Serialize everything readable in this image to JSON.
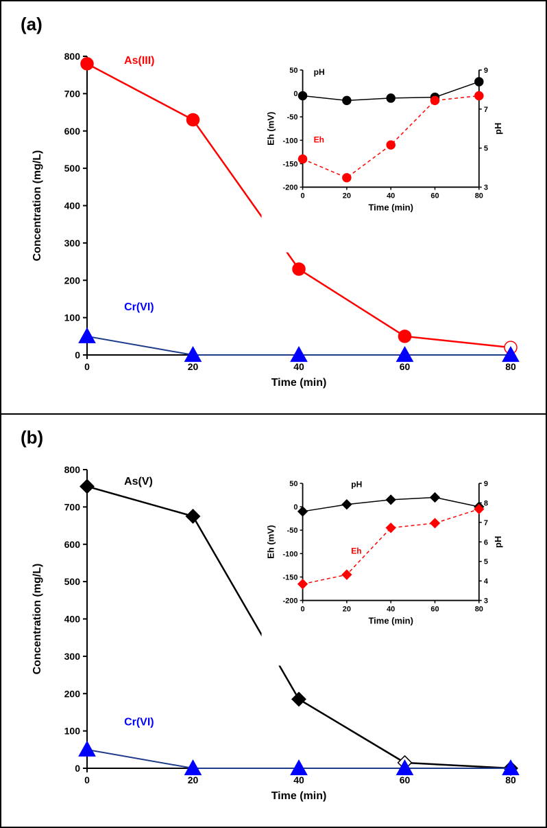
{
  "panels": [
    {
      "label": "(a)",
      "main_chart": {
        "type": "line",
        "xlabel": "Time (min)",
        "ylabel": "Concentration (mg/L)",
        "label_fontsize": 16,
        "axis_font_weight": "bold",
        "xlim": [
          0,
          80
        ],
        "ylim": [
          0,
          800
        ],
        "xtick_step": 20,
        "ytick_step": 100,
        "tick_fontsize": 14,
        "background_color": "#ffffff",
        "series": [
          {
            "name": "As(III)",
            "label": "As(III)",
            "label_color": "#ff0000",
            "label_pos": {
              "x": 7,
              "y": 780
            },
            "color": "#ff0000",
            "line_width": 2.5,
            "marker": "circle",
            "marker_size": 9,
            "marker_fill": "#ff0000",
            "x": [
              0,
              20,
              40,
              60,
              80
            ],
            "y": [
              780,
              630,
              230,
              50,
              20
            ],
            "last_open": true
          },
          {
            "name": "Cr(VI)",
            "label": "Cr(VI)",
            "label_color": "#0000ff",
            "label_pos": {
              "x": 7,
              "y": 120
            },
            "color": "#1e3a8a",
            "line_width": 2,
            "marker": "triangle",
            "marker_size": 10,
            "marker_fill": "#0000ff",
            "x": [
              0,
              20,
              40,
              60,
              80
            ],
            "y": [
              50,
              0,
              0,
              0,
              0
            ]
          }
        ]
      },
      "inset_chart": {
        "type": "line-dual",
        "xlabel": "Time (min)",
        "ylabel_left": "Eh (mV)",
        "ylabel_right": "pH",
        "label_fontsize": 13,
        "axis_font_weight": "bold",
        "xlim": [
          0,
          80
        ],
        "ylim_left": [
          -200,
          50
        ],
        "ylim_right": [
          3,
          9
        ],
        "xtick_step": 20,
        "ytick_left_step": 50,
        "ytick_right_step": 2,
        "tick_fontsize": 11,
        "background_color": "#ffffff",
        "series": [
          {
            "name": "pH",
            "label": "pH",
            "label_color": "#000000",
            "label_pos": {
              "x": 5,
              "y": 40
            },
            "axis": "left",
            "color": "#000000",
            "line_width": 1.5,
            "marker": "circle",
            "marker_size": 6,
            "marker_fill": "#000000",
            "x": [
              0,
              20,
              40,
              60,
              80
            ],
            "y": [
              -5,
              -15,
              -10,
              -8,
              25
            ]
          },
          {
            "name": "Eh",
            "label": "Eh",
            "label_color": "#ff0000",
            "label_pos": {
              "x": 5,
              "y": -105
            },
            "axis": "left",
            "color": "#ff0000",
            "line_width": 1.5,
            "line_style": "dashed",
            "marker": "circle",
            "marker_size": 6,
            "marker_fill": "#ff0000",
            "x": [
              0,
              20,
              40,
              60,
              80
            ],
            "y": [
              -140,
              -180,
              -110,
              -15,
              -5
            ]
          }
        ]
      }
    },
    {
      "label": "(b)",
      "main_chart": {
        "type": "line",
        "xlabel": "Time (min)",
        "ylabel": "Concentration (mg/L)",
        "label_fontsize": 16,
        "axis_font_weight": "bold",
        "xlim": [
          0,
          80
        ],
        "ylim": [
          0,
          800
        ],
        "xtick_step": 20,
        "ytick_step": 100,
        "tick_fontsize": 14,
        "background_color": "#ffffff",
        "series": [
          {
            "name": "As(V)",
            "label": "As(V)",
            "label_color": "#000000",
            "label_pos": {
              "x": 7,
              "y": 760
            },
            "color": "#000000",
            "line_width": 2.5,
            "marker": "diamond",
            "marker_size": 9,
            "marker_fill": "#000000",
            "x": [
              0,
              20,
              40,
              60,
              80
            ],
            "y": [
              755,
              675,
              185,
              15,
              0
            ],
            "open_at": [
              3
            ]
          },
          {
            "name": "Cr(VI)",
            "label": "Cr(VI)",
            "label_color": "#0000ff",
            "label_pos": {
              "x": 7,
              "y": 115
            },
            "color": "#1e3a8a",
            "line_width": 2,
            "marker": "triangle",
            "marker_size": 10,
            "marker_fill": "#0000ff",
            "x": [
              0,
              20,
              40,
              60,
              80
            ],
            "y": [
              50,
              0,
              0,
              0,
              0
            ]
          }
        ]
      },
      "inset_chart": {
        "type": "line-dual",
        "xlabel": "Time (min)",
        "ylabel_left": "Eh (mV)",
        "ylabel_right": "pH",
        "label_fontsize": 13,
        "axis_font_weight": "bold",
        "xlim": [
          0,
          80
        ],
        "ylim_left": [
          -200,
          50
        ],
        "ylim_right": [
          3,
          9
        ],
        "xtick_step": 20,
        "ytick_left_step": 50,
        "ytick_right_step": 1,
        "tick_fontsize": 11,
        "background_color": "#ffffff",
        "series": [
          {
            "name": "pH",
            "label": "pH",
            "label_color": "#000000",
            "label_pos": {
              "x": 22,
              "y": 42
            },
            "axis": "left",
            "color": "#000000",
            "line_width": 1.5,
            "marker": "diamond",
            "marker_size": 6,
            "marker_fill": "#000000",
            "x": [
              0,
              20,
              40,
              60,
              80
            ],
            "y": [
              -10,
              5,
              15,
              20,
              0
            ]
          },
          {
            "name": "Eh",
            "label": "Eh",
            "label_color": "#ff0000",
            "label_pos": {
              "x": 22,
              "y": -100
            },
            "axis": "left",
            "color": "#ff0000",
            "line_width": 1.5,
            "line_style": "dashed",
            "marker": "diamond",
            "marker_size": 6,
            "marker_fill": "#ff0000",
            "x": [
              0,
              20,
              40,
              60,
              80
            ],
            "y": [
              -165,
              -145,
              -45,
              -35,
              -5
            ]
          }
        ]
      }
    }
  ]
}
